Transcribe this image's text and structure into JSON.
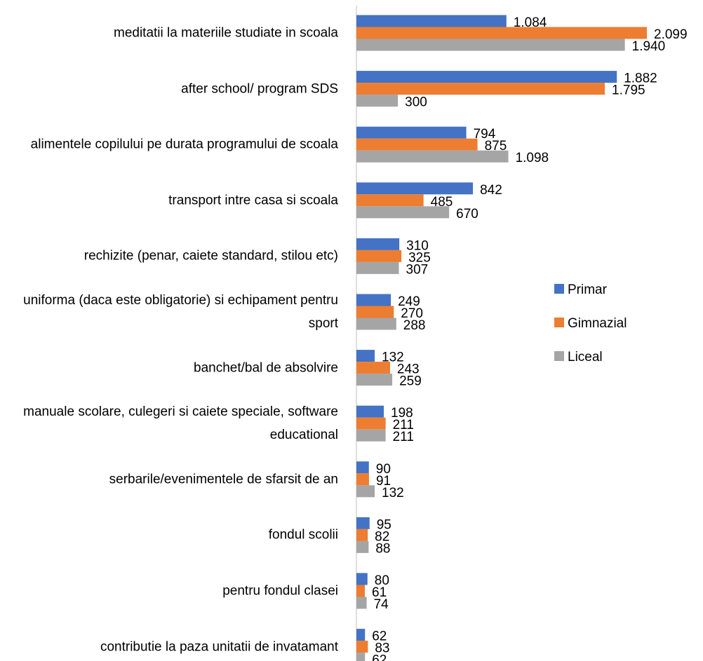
{
  "chart_data": {
    "type": "bar",
    "orientation": "horizontal",
    "categories": [
      "meditatii la materiile studiate in scoala",
      "after school/ program SDS",
      "alimentele copilului pe durata programului de scoala",
      "transport intre casa si scoala",
      "rechizite (penar, caiete standard, stilou etc)",
      "uniforma (daca este obligatorie) si echipament pentru sport",
      "banchet/bal de absolvire",
      "manuale scolare, culegeri si caiete speciale, software educational",
      "serbarile/evenimentele de sfarsit de an",
      "fondul scolii",
      "pentru fondul clasei",
      "contributie la paza unitatii de invatamant"
    ],
    "series": [
      {
        "name": "Primar",
        "color": "#4472c4",
        "values": [
          1084,
          1882,
          794,
          842,
          310,
          249,
          132,
          198,
          90,
          95,
          80,
          62
        ],
        "value_labels": [
          "1.084",
          "1.882",
          "794",
          "842",
          "310",
          "249",
          "132",
          "198",
          "90",
          "95",
          "80",
          "62"
        ]
      },
      {
        "name": "Gimnazial",
        "color": "#ed7d31",
        "values": [
          2099,
          1795,
          875,
          485,
          325,
          270,
          243,
          211,
          91,
          82,
          61,
          83
        ],
        "value_labels": [
          "2.099",
          "1.795",
          "875",
          "485",
          "325",
          "270",
          "243",
          "211",
          "91",
          "82",
          "61",
          "83"
        ]
      },
      {
        "name": "Liceal",
        "color": "#a5a5a5",
        "values": [
          1940,
          300,
          1098,
          670,
          307,
          288,
          259,
          211,
          132,
          88,
          74,
          62
        ],
        "value_labels": [
          "1.940",
          "300",
          "1.098",
          "670",
          "307",
          "288",
          "259",
          "211",
          "132",
          "88",
          "74",
          "62"
        ]
      }
    ],
    "legend": "right"
  }
}
